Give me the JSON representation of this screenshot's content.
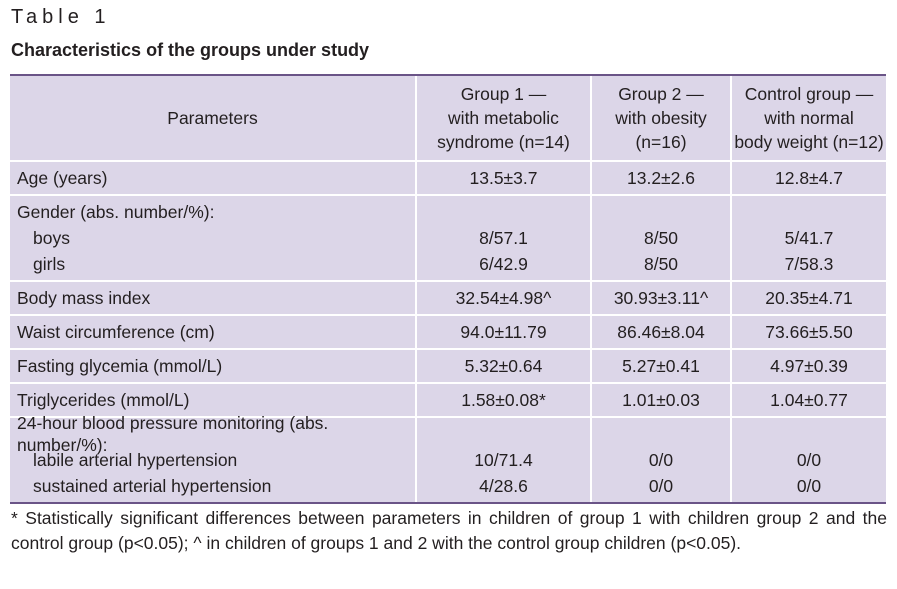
{
  "table_label": "Table 1",
  "caption": "Characteristics of the groups under study",
  "header": {
    "parameters": "Parameters",
    "group1": [
      "Group 1 —",
      "with metabolic",
      "syndrome (n=14)"
    ],
    "group2": [
      "Group 2 —",
      "with obesity",
      "(n=16)"
    ],
    "control": [
      "Control group —",
      "with normal",
      "body weight (n=12)"
    ]
  },
  "rows": {
    "age": {
      "label": "Age (years)",
      "g1": "13.5±3.7",
      "g2": "13.2±2.6",
      "ctrl": "12.8±4.7"
    },
    "gender": {
      "label": "Gender (abs. number/%):",
      "boys": {
        "label": "boys",
        "g1": "8/57.1",
        "g2": "8/50",
        "ctrl": "5/41.7"
      },
      "girls": {
        "label": "girls",
        "g1": "6/42.9",
        "g2": "8/50",
        "ctrl": "7/58.3"
      }
    },
    "bmi": {
      "label": "Body mass index",
      "g1": "32.54±4.98^",
      "g2": "30.93±3.11^",
      "ctrl": "20.35±4.71"
    },
    "waist": {
      "label": "Waist circumference (cm)",
      "g1": "94.0±11.79",
      "g2": "86.46±8.04",
      "ctrl": "73.66±5.50"
    },
    "glycemia": {
      "label": "Fasting glycemia (mmol/L)",
      "g1": "5.32±0.64",
      "g2": "5.27±0.41",
      "ctrl": "4.97±0.39"
    },
    "triglycerides": {
      "label": "Triglycerides (mmol/L)",
      "g1": "1.58±0.08*",
      "g2": "1.01±0.03",
      "ctrl": "1.04±0.77"
    },
    "bp": {
      "label": "24-hour blood pressure monitoring (abs. number/%):",
      "labile": {
        "label": "labile arterial hypertension",
        "g1": "10/71.4",
        "g2": "0/0",
        "ctrl": "0/0"
      },
      "sustained": {
        "label": "sustained arterial hypertension",
        "g1": "4/28.6",
        "g2": "0/0",
        "ctrl": "0/0"
      }
    }
  },
  "footnote": "* Statistically significant differences between parameters in children of group 1 with children group 2 and the control group (p<0.05); ^ in children of groups 1 and 2 with the control group children (p<0.05).",
  "colors": {
    "row_background": "#dcd6e8",
    "rule": "#6a5487",
    "text": "#231f20"
  }
}
